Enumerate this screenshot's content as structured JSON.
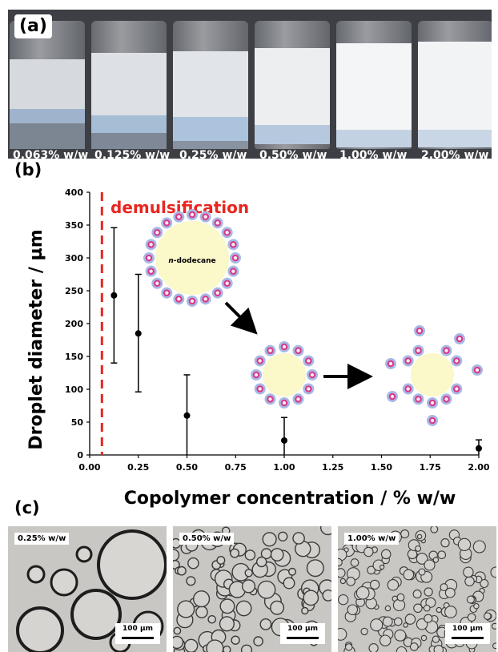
{
  "panel_a": {
    "label": "(a)",
    "vials": [
      {
        "label": "0.063% w/w"
      },
      {
        "label": "0.125% w/w"
      },
      {
        "label": "0.25% w/w"
      },
      {
        "label": "0.50% w/w"
      },
      {
        "label": "1.00% w/w"
      },
      {
        "label": "2.00% w/w"
      }
    ]
  },
  "panel_b": {
    "label": "(b)",
    "annotation": "demulsification",
    "droplet_core_label_prefix": "n",
    "droplet_core_label_suffix": "-dodecane"
  },
  "panel_c": {
    "label": "(c)",
    "images": [
      {
        "label": "0.25% w/w",
        "scale": "100 µm"
      },
      {
        "label": "0.50% w/w",
        "scale": "100 µm"
      },
      {
        "label": "1.00% w/w",
        "scale": "100 µm"
      }
    ]
  },
  "chart_data": {
    "type": "scatter",
    "xlabel": "Copolymer concentration / % w/w",
    "ylabel": "Droplet diameter / µm",
    "xlim": [
      0.0,
      2.0
    ],
    "ylim": [
      0,
      400
    ],
    "xticks": [
      "0.00",
      "0.25",
      "0.50",
      "0.75",
      "1.00",
      "1.25",
      "1.50",
      "1.75",
      "2.00"
    ],
    "yticks": [
      "0",
      "50",
      "100",
      "150",
      "200",
      "250",
      "300",
      "350",
      "400"
    ],
    "points": [
      {
        "x": 0.125,
        "y": 243,
        "yerr_low": 140,
        "yerr_high": 346
      },
      {
        "x": 0.25,
        "y": 185,
        "yerr_low": 96,
        "yerr_high": 275
      },
      {
        "x": 0.5,
        "y": 60,
        "yerr_low": 0,
        "yerr_high": 122
      },
      {
        "x": 1.0,
        "y": 22,
        "yerr_low": 0,
        "yerr_high": 57
      },
      {
        "x": 2.0,
        "y": 10,
        "yerr_low": 0,
        "yerr_high": 23
      }
    ],
    "threshold_x": 0.063,
    "threshold_color": "#e8261f",
    "marker_color": "#000000"
  }
}
